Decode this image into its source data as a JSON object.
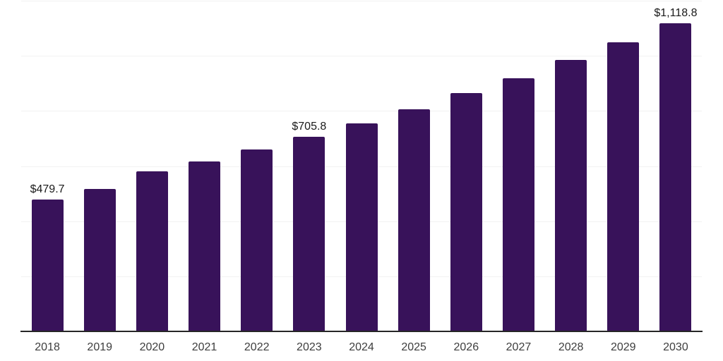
{
  "chart_data": {
    "type": "bar",
    "title": "",
    "xlabel": "",
    "ylabel": "",
    "categories": [
      "2018",
      "2019",
      "2020",
      "2021",
      "2022",
      "2023",
      "2024",
      "2025",
      "2026",
      "2027",
      "2028",
      "2029",
      "2030"
    ],
    "values": [
      479.7,
      517,
      580,
      616,
      660,
      705.8,
      755,
      805,
      864,
      919,
      985,
      1050,
      1118.8
    ],
    "data_labels": {
      "2018": "$479.7",
      "2023": "$705.8",
      "2030": "$1,118.8"
    },
    "ylim": [
      0,
      1200
    ],
    "gridline_step": 200,
    "grid": true,
    "legend": false,
    "y_axis_labels_visible": false,
    "colors": {
      "bar": "#38125a",
      "data_label": "#1a1a1a",
      "tick_label": "#3d3d3d",
      "axis_line": "#262626",
      "gridline": "#f2f2f2",
      "background": "#ffffff"
    }
  }
}
